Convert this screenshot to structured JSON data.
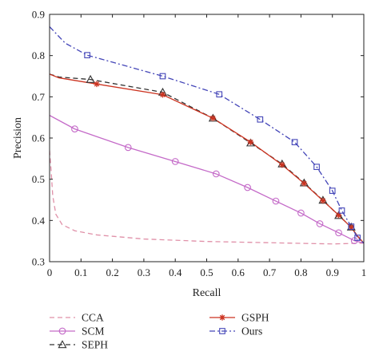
{
  "chart_data": {
    "type": "line",
    "xlabel": "Recall",
    "ylabel": "Precision",
    "xlim": [
      0,
      1
    ],
    "ylim": [
      0.3,
      0.9
    ],
    "x_ticks": [
      "0",
      "0.1",
      "0.2",
      "0.3",
      "0.4",
      "0.5",
      "0.6",
      "0.7",
      "0.8",
      "0.9",
      "1"
    ],
    "y_ticks": [
      "0.3",
      "0.4",
      "0.5",
      "0.6",
      "0.7",
      "0.8",
      "0.9"
    ],
    "grid": false,
    "legend_position": "bottom",
    "series": [
      {
        "name": "CCA",
        "color": "#e090a8",
        "dash": "dashed",
        "marker": "none",
        "x": [
          0.0,
          0.005,
          0.01,
          0.02,
          0.04,
          0.08,
          0.15,
          0.3,
          0.5,
          0.7,
          0.9,
          1.0
        ],
        "y": [
          0.57,
          0.52,
          0.46,
          0.415,
          0.39,
          0.375,
          0.365,
          0.355,
          0.349,
          0.346,
          0.343,
          0.345
        ],
        "markers": []
      },
      {
        "name": "SCM",
        "color": "#c46ac8",
        "dash": "solid",
        "marker": "circle",
        "x": [
          0.0,
          0.08,
          0.25,
          0.4,
          0.53,
          0.63,
          0.72,
          0.8,
          0.86,
          0.92,
          0.97,
          1.0
        ],
        "y": [
          0.655,
          0.622,
          0.577,
          0.543,
          0.513,
          0.48,
          0.447,
          0.418,
          0.392,
          0.37,
          0.351,
          0.345
        ],
        "markers": [
          0.08,
          0.25,
          0.4,
          0.53,
          0.63,
          0.72,
          0.8,
          0.86,
          0.92,
          0.97
        ]
      },
      {
        "name": "SEPH",
        "color": "#333333",
        "dash": "dashed",
        "marker": "triangle",
        "x": [
          0.0,
          0.03,
          0.13,
          0.36,
          0.52,
          0.64,
          0.74,
          0.81,
          0.87,
          0.92,
          0.96,
          0.98,
          1.0
        ],
        "y": [
          0.755,
          0.748,
          0.742,
          0.711,
          0.648,
          0.588,
          0.537,
          0.491,
          0.449,
          0.412,
          0.384,
          0.362,
          0.345
        ],
        "markers": [
          0.13,
          0.36,
          0.52,
          0.64,
          0.74,
          0.81,
          0.87,
          0.92,
          0.96
        ]
      },
      {
        "name": "GSPH",
        "color": "#cc3320",
        "dash": "solid",
        "marker": "star",
        "x": [
          0.0,
          0.03,
          0.15,
          0.36,
          0.52,
          0.64,
          0.74,
          0.81,
          0.87,
          0.92,
          0.96,
          0.98,
          1.0
        ],
        "y": [
          0.755,
          0.746,
          0.731,
          0.705,
          0.648,
          0.59,
          0.535,
          0.49,
          0.448,
          0.413,
          0.383,
          0.362,
          0.345
        ],
        "markers": [
          0.15,
          0.36,
          0.52,
          0.64,
          0.74,
          0.81,
          0.87,
          0.92,
          0.96
        ]
      },
      {
        "name": "Ours",
        "color": "#4446b8",
        "dash": "dashdot",
        "marker": "square",
        "x": [
          0.0,
          0.05,
          0.12,
          0.36,
          0.54,
          0.67,
          0.78,
          0.85,
          0.9,
          0.93,
          0.96,
          0.98,
          1.0
        ],
        "y": [
          0.87,
          0.83,
          0.801,
          0.75,
          0.706,
          0.645,
          0.59,
          0.53,
          0.472,
          0.424,
          0.385,
          0.358,
          0.345
        ],
        "markers": [
          0.12,
          0.36,
          0.54,
          0.67,
          0.78,
          0.85,
          0.9,
          0.93,
          0.96,
          0.98
        ]
      }
    ]
  }
}
